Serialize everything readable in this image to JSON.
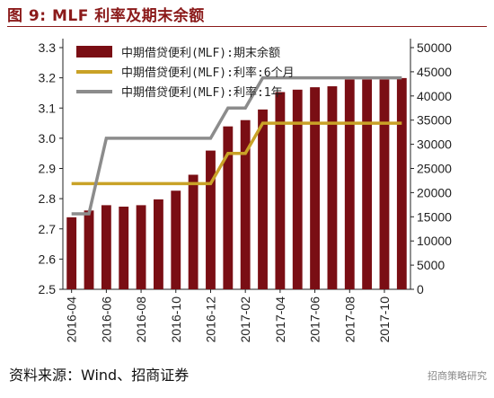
{
  "header": {
    "title": "图 9:  MLF 利率及期末余额"
  },
  "footer": {
    "source": "资料来源：Wind、招商证券",
    "watermark": "招商策略研究"
  },
  "chart_data": {
    "type": "bar",
    "categories": [
      "2016-04",
      "",
      "2016-06",
      "",
      "2016-08",
      "",
      "2016-10",
      "",
      "2016-12",
      "",
      "2017-02",
      "",
      "2017-04",
      "",
      "2017-06",
      "",
      "2017-08",
      "",
      "2017-10",
      ""
    ],
    "x_tick_labels": [
      "2016-04",
      "2016-06",
      "2016-08",
      "2016-10",
      "2016-12",
      "2017-02",
      "2017-04",
      "2017-06",
      "2017-08",
      "2017-10"
    ],
    "series": [
      {
        "name": "中期借贷便利(MLF):期末余额",
        "type": "bar",
        "axis": "right",
        "color": "#7a0e14",
        "values": [
          14900,
          16300,
          17400,
          17100,
          17400,
          18600,
          20400,
          23700,
          28700,
          33700,
          35000,
          37200,
          40800,
          41300,
          41800,
          42000,
          43400,
          43400,
          43400,
          43700
        ]
      },
      {
        "name": "中期借贷便利(MLF):利率:6个月",
        "type": "line",
        "axis": "left",
        "color": "#c9a227",
        "values": [
          2.85,
          2.85,
          2.85,
          2.85,
          2.85,
          2.85,
          2.85,
          2.85,
          2.85,
          2.95,
          2.95,
          3.05,
          3.05,
          3.05,
          3.05,
          3.05,
          3.05,
          3.05,
          3.05,
          3.05
        ]
      },
      {
        "name": "中期借贷便利(MLF):利率:1年",
        "type": "line",
        "axis": "left",
        "color": "#8c8c8c",
        "values": [
          2.75,
          2.75,
          3.0,
          3.0,
          3.0,
          3.0,
          3.0,
          3.0,
          3.0,
          3.1,
          3.1,
          3.2,
          3.2,
          3.2,
          3.2,
          3.2,
          3.2,
          3.2,
          3.2,
          3.2
        ]
      }
    ],
    "y_left": {
      "min": 2.5,
      "max": 3.3,
      "ticks": [
        "2.5",
        "2.6",
        "2.7",
        "2.8",
        "2.9",
        "3.0",
        "3.1",
        "3.2",
        "3.3"
      ]
    },
    "y_right": {
      "min": 0,
      "max": 50000,
      "ticks": [
        "0",
        "5000",
        "10000",
        "15000",
        "20000",
        "25000",
        "30000",
        "35000",
        "40000",
        "45000",
        "50000"
      ]
    },
    "legend_position": "top-left",
    "grid": false
  }
}
